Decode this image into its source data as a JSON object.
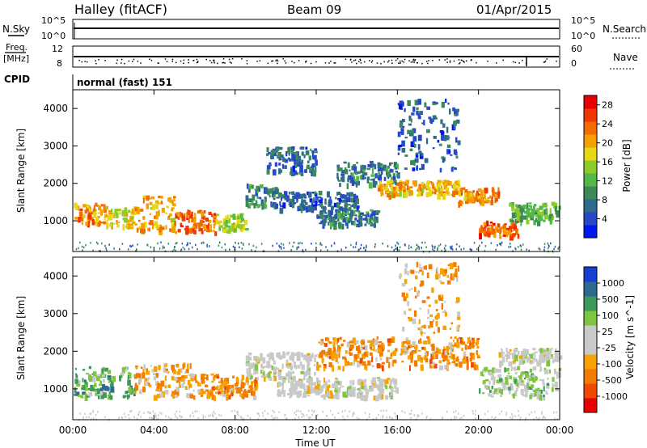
{
  "header": {
    "station": "Halley (fitACF)",
    "beam": "Beam 09",
    "date": "01/Apr/2015"
  },
  "panel_labels": {
    "nsky": "N.Sky",
    "nsky_ticks": [
      "10^5",
      "10^0"
    ],
    "nsearch": "N.Search",
    "nsearch_ticks": [
      "10^5",
      "10^0"
    ],
    "freq": "Freq.",
    "freq_unit": "[MHz]",
    "freq_ticks": [
      "12",
      "8"
    ],
    "nave": "Nave",
    "nave_ticks": [
      "60",
      "0"
    ],
    "cpid": "CPID",
    "cpid_value": "normal (fast) 151"
  },
  "colors": {
    "power_scale": [
      "#0018f0",
      "#2848c8",
      "#2e6b8c",
      "#3d8a58",
      "#52b848",
      "#8ccc28",
      "#e6d814",
      "#f4a000",
      "#f36c00",
      "#f03800",
      "#e80000"
    ],
    "velocity_scale": [
      "#e80000",
      "#ef4a00",
      "#f37b00",
      "#f6a200",
      "#c9c9c9",
      "#c9c9c9",
      "#7fc640",
      "#3a9a58",
      "#2d6a8f",
      "#1840d0"
    ]
  },
  "chart_data": [
    {
      "type": "heatmap",
      "panel": "power",
      "ylabel": "Slant Range [km]",
      "xlabel": "Time UT",
      "x_ticks": [
        "00:00",
        "04:00",
        "08:00",
        "12:00",
        "16:00",
        "20:00",
        "00:00"
      ],
      "y_ticks": [
        "1000",
        "2000",
        "3000",
        "4000"
      ],
      "xlim_hours": [
        0,
        24
      ],
      "ylim_km": [
        180,
        4500
      ],
      "colorbar_label": "Power [dB]",
      "colorbar_ticks": [
        "28",
        "24",
        "20",
        "16",
        "12",
        "8",
        "4"
      ],
      "colorbar_range": [
        0,
        30
      ],
      "bands": [
        {
          "t": [
            0,
            1.5
          ],
          "r": [
            900,
            1500
          ],
          "v": 22
        },
        {
          "t": [
            1.5,
            3
          ],
          "r": [
            850,
            1400
          ],
          "v": 18
        },
        {
          "t": [
            3,
            5
          ],
          "r": [
            750,
            1700
          ],
          "v": 20
        },
        {
          "t": [
            5,
            7
          ],
          "r": [
            700,
            1300
          ],
          "v": 24
        },
        {
          "t": [
            7,
            8.5
          ],
          "r": [
            750,
            1200
          ],
          "v": 16
        },
        {
          "t": [
            8.5,
            10
          ],
          "r": [
            1400,
            2000
          ],
          "v": 8
        },
        {
          "t": [
            9.5,
            12
          ],
          "r": [
            2300,
            3000
          ],
          "v": 6
        },
        {
          "t": [
            10,
            14
          ],
          "r": [
            1300,
            1800
          ],
          "v": 6
        },
        {
          "t": [
            12,
            15
          ],
          "r": [
            900,
            1300
          ],
          "v": 8
        },
        {
          "t": [
            13,
            16
          ],
          "r": [
            2000,
            2600
          ],
          "v": 8
        },
        {
          "t": [
            15,
            19
          ],
          "r": [
            1700,
            2100
          ],
          "v": 20
        },
        {
          "t": [
            16,
            19
          ],
          "r": [
            2400,
            4300
          ],
          "v": 6
        },
        {
          "t": [
            19,
            21
          ],
          "r": [
            1500,
            1900
          ],
          "v": 22
        },
        {
          "t": [
            20,
            22
          ],
          "r": [
            600,
            1000
          ],
          "v": 24
        },
        {
          "t": [
            21.5,
            24
          ],
          "r": [
            1000,
            1500
          ],
          "v": 12
        }
      ]
    },
    {
      "type": "heatmap",
      "panel": "velocity",
      "ylabel": "Slant Range [km]",
      "xlabel": "Time UT",
      "x_ticks": [
        "00:00",
        "04:00",
        "08:00",
        "12:00",
        "16:00",
        "20:00",
        "00:00"
      ],
      "y_ticks": [
        "1000",
        "2000",
        "3000",
        "4000"
      ],
      "xlim_hours": [
        0,
        24
      ],
      "ylim_km": [
        180,
        4500
      ],
      "colorbar_label": "Velocity [m s^-1]",
      "colorbar_ticks": [
        "1000",
        "500",
        "100",
        "25",
        "-25",
        "-100",
        "-500",
        "-1000"
      ],
      "colorbar_range": [
        -1000,
        1000
      ],
      "bands": [
        {
          "t": [
            0,
            3
          ],
          "r": [
            800,
            1600
          ],
          "v": 400
        },
        {
          "t": [
            3,
            6
          ],
          "r": [
            800,
            1700
          ],
          "v": -300
        },
        {
          "t": [
            6,
            9
          ],
          "r": [
            800,
            1400
          ],
          "v": -400
        },
        {
          "t": [
            8.5,
            12
          ],
          "r": [
            1300,
            2000
          ],
          "v": 0
        },
        {
          "t": [
            10,
            16
          ],
          "r": [
            800,
            1300
          ],
          "v": 0
        },
        {
          "t": [
            12,
            20
          ],
          "r": [
            1600,
            2400
          ],
          "v": -400
        },
        {
          "t": [
            16,
            19
          ],
          "r": [
            2500,
            4400
          ],
          "v": -300
        },
        {
          "t": [
            20,
            24
          ],
          "r": [
            800,
            1600
          ],
          "v": 200
        },
        {
          "t": [
            21,
            24
          ],
          "r": [
            1700,
            2100
          ],
          "v": 0
        }
      ]
    }
  ]
}
